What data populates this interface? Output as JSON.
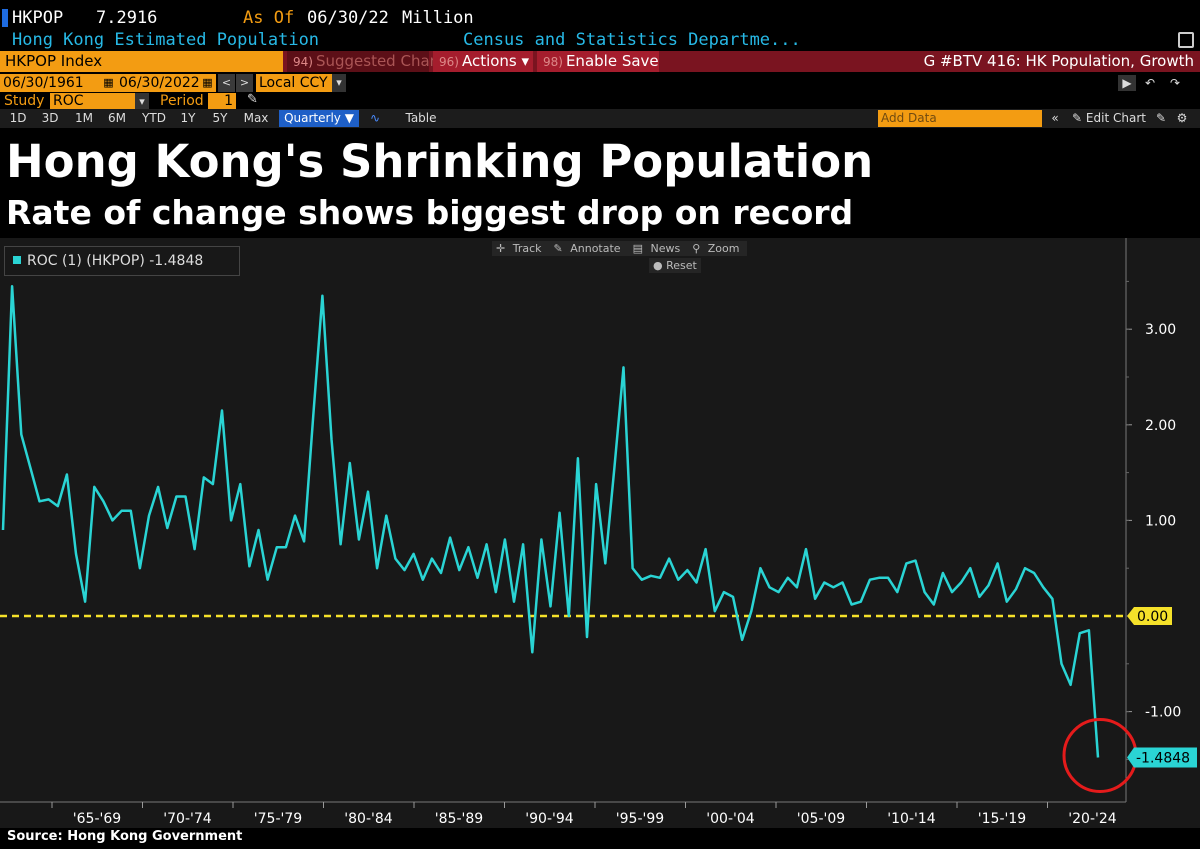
{
  "header": {
    "ticker": "HKPOP",
    "value": "7.2916",
    "as_of_label": "As Of",
    "as_of_date": "06/30/22",
    "unit": "Million",
    "description": "Hong Kong Estimated Population",
    "source_org": "Census and Statistics Departme..."
  },
  "toolbar": {
    "ticker_field": "HKPOP Index",
    "suggested_num": "94)",
    "suggested_label": "Suggested Charts",
    "actions_num": "96)",
    "actions_label": "Actions ▾",
    "save_num": "98)",
    "save_label": "Enable Save",
    "graph_title": "G #BTV 416: HK Population, Growth"
  },
  "controls": {
    "start_date": "06/30/1961",
    "end_date": "06/30/2022",
    "currency": "Local CCY",
    "study_label": "Study",
    "study_value": "ROC",
    "period_label": "Period",
    "period_value": "1",
    "ranges": [
      "1D",
      "3D",
      "1M",
      "6M",
      "YTD",
      "1Y",
      "5Y",
      "Max"
    ],
    "frequency": "Quarterly ▼",
    "table_label": "Table",
    "add_data_placeholder": "Add Data",
    "edit_chart_label": "Edit Chart"
  },
  "tools": {
    "track": "Track",
    "annotate": "Annotate",
    "news": "News",
    "zoom": "Zoom",
    "reset": "Reset"
  },
  "colors": {
    "series": "#2ad4d4",
    "zero_line": "#f5e12a",
    "circle": "#e41b1b",
    "accent": "#f39c12"
  },
  "chart_data": {
    "type": "line",
    "title": "Hong Kong's Shrinking Population",
    "subtitle": "Rate of change shows biggest drop on record",
    "legend": "ROC (1) (HKPOP) -1.4848",
    "legend_position": "top-left",
    "source": "Source: Hong Kong Government",
    "ylim": [
      -1.8,
      3.8
    ],
    "y_ticks": [
      "3.00",
      "2.00",
      "1.00",
      "0.00",
      "-1.00"
    ],
    "x_labels": [
      "'65-'69",
      "'70-'74",
      "'75-'79",
      "'80-'84",
      "'85-'89",
      "'90-'94",
      "'95-'99",
      "'00-'04",
      "'05-'09",
      "'10-'14",
      "'15-'19",
      "'20-'24"
    ],
    "last_value_label": "-1.4848",
    "zero_label": "0.00",
    "series": [
      {
        "name": "ROC (1) (HKPOP)",
        "values": [
          0.9,
          3.45,
          1.9,
          1.55,
          1.2,
          1.22,
          1.15,
          1.48,
          0.65,
          0.15,
          1.35,
          1.2,
          1.0,
          1.1,
          1.1,
          0.5,
          1.05,
          1.35,
          0.92,
          1.25,
          1.25,
          0.7,
          1.45,
          1.38,
          2.15,
          1.0,
          1.38,
          0.52,
          0.9,
          0.38,
          0.72,
          0.72,
          1.05,
          0.78,
          2.1,
          3.35,
          1.85,
          0.75,
          1.6,
          0.8,
          1.3,
          0.5,
          1.05,
          0.6,
          0.48,
          0.65,
          0.38,
          0.6,
          0.45,
          0.82,
          0.48,
          0.72,
          0.4,
          0.75,
          0.25,
          0.8,
          0.15,
          0.75,
          -0.38,
          0.8,
          0.1,
          1.08,
          0.0,
          1.65,
          -0.22,
          1.38,
          0.55,
          1.55,
          2.6,
          0.5,
          0.38,
          0.42,
          0.4,
          0.6,
          0.38,
          0.48,
          0.35,
          0.7,
          0.05,
          0.25,
          0.2,
          -0.25,
          0.05,
          0.5,
          0.3,
          0.25,
          0.4,
          0.3,
          0.7,
          0.18,
          0.35,
          0.3,
          0.35,
          0.12,
          0.15,
          0.38,
          0.4,
          0.4,
          0.25,
          0.55,
          0.58,
          0.25,
          0.12,
          0.45,
          0.25,
          0.35,
          0.5,
          0.2,
          0.32,
          0.55,
          0.15,
          0.28,
          0.5,
          0.45,
          0.3,
          0.18,
          -0.5,
          -0.72,
          -0.18,
          -0.15,
          -1.48
        ]
      }
    ],
    "x_axis_position": "bottom",
    "y_axis_position": "right",
    "grid": false
  }
}
